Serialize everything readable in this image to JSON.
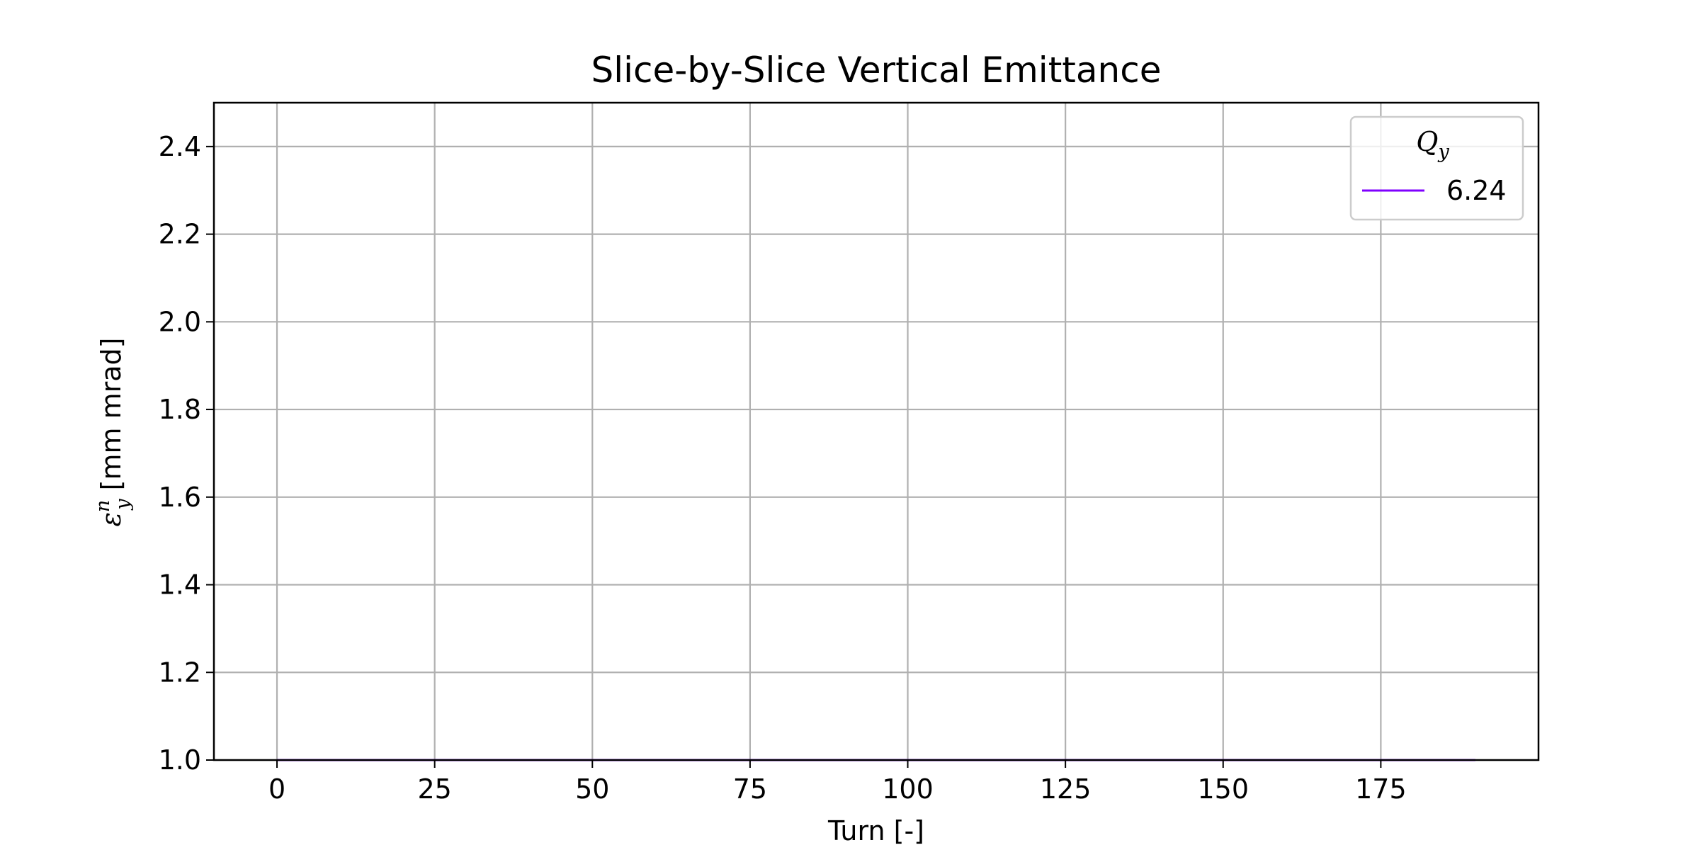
{
  "chart_data": {
    "type": "line",
    "title": "Slice-by-Slice Vertical Emittance",
    "xlabel": "Turn [-]",
    "ylabel": {
      "symbol": "ε",
      "sub": "y",
      "sup": "n",
      "rest": " [mm mrad]"
    },
    "xlim": [
      -10,
      200
    ],
    "ylim": [
      1.0,
      2.5
    ],
    "xticks": [
      0,
      25,
      50,
      75,
      100,
      125,
      150,
      175
    ],
    "xtick_labels": [
      "0",
      "25",
      "50",
      "75",
      "100",
      "125",
      "150",
      "175"
    ],
    "yticks": [
      1.0,
      1.2,
      1.4,
      1.6,
      1.8,
      2.0,
      2.2,
      2.4
    ],
    "ytick_labels": [
      "1.0",
      "1.2",
      "1.4",
      "1.6",
      "1.8",
      "2.0",
      "2.2",
      "2.4"
    ],
    "grid": true,
    "legend": {
      "title": {
        "base": "Q",
        "sub": "y"
      },
      "placement": "top-right"
    },
    "series": [
      {
        "name": "6.24",
        "color": "#7f00ff",
        "x": [
          0,
          190
        ],
        "y": [
          1.0,
          1.0
        ]
      }
    ]
  }
}
